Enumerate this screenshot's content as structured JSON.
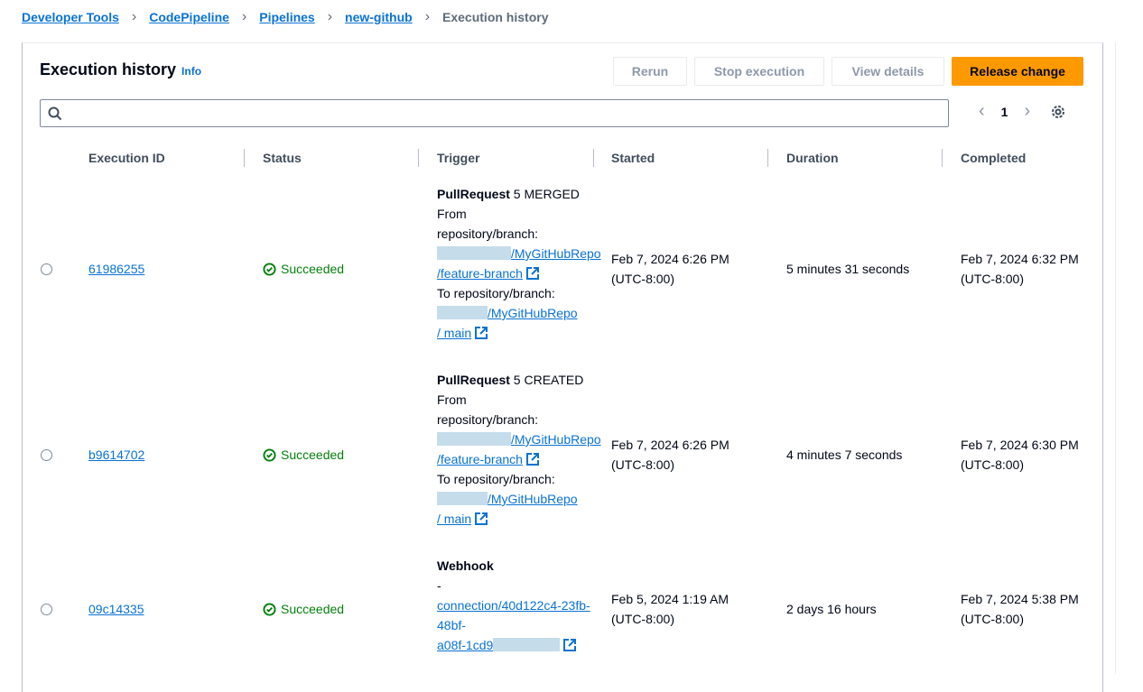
{
  "breadcrumb": [
    "Developer Tools",
    "CodePipeline",
    "Pipelines",
    "new-github",
    "Execution history"
  ],
  "header": {
    "title": "Execution history",
    "info": "Info"
  },
  "buttons": {
    "rerun": "Rerun",
    "stop": "Stop execution",
    "view": "View details",
    "release": "Release change"
  },
  "search": {
    "placeholder": ""
  },
  "pagination": {
    "page": "1"
  },
  "columns": [
    "Execution ID",
    "Status",
    "Trigger",
    "Started",
    "Duration",
    "Completed"
  ],
  "rows": [
    {
      "id": "61986255",
      "status": "Succeeded",
      "trigger_type": "PullRequest",
      "trigger_detail": "5 MERGED",
      "from_label": "From",
      "from_label2": "repository/branch:",
      "from_repo": "/MyGitHubRepo",
      "from_branch": "/feature-branch",
      "to_label": "To repository/branch:",
      "to_repo": "/MyGitHubRepo",
      "to_branch": "/ main",
      "started": "Feb 7, 2024 6:26 PM",
      "started_tz": "(UTC-8:00)",
      "duration": "5 minutes 31 seconds",
      "completed": "Feb 7, 2024 6:32 PM",
      "completed_tz": "(UTC-8:00)"
    },
    {
      "id": "b9614702",
      "status": "Succeeded",
      "trigger_type": "PullRequest",
      "trigger_detail": "5 CREATED",
      "from_label": "From",
      "from_label2": "repository/branch:",
      "from_repo": "/MyGitHubRepo",
      "from_branch": "/feature-branch",
      "to_label": "To repository/branch:",
      "to_repo": "/MyGitHubRepo",
      "to_branch": "/ main",
      "started": "Feb 7, 2024 6:26 PM",
      "started_tz": "(UTC-8:00)",
      "duration": "4 minutes 7 seconds",
      "completed": "Feb 7, 2024 6:30 PM",
      "completed_tz": "(UTC-8:00)"
    },
    {
      "id": "09c14335",
      "status": "Succeeded",
      "trigger_type": "Webhook",
      "dash": "-",
      "conn1": "connection/40d122c4-23fb-",
      "conn2": "48bf-",
      "conn3": "a08f-1cd9",
      "started": "Feb 5, 2024 1:19 AM",
      "started_tz": "(UTC-8:00)",
      "duration": "2 days 16 hours",
      "completed": "Feb 7, 2024 5:38 PM",
      "completed_tz": "(UTC-8:00)"
    }
  ],
  "colors": {
    "link": "#0972d3",
    "success": "#037f0c",
    "primary": "#ff9900"
  }
}
